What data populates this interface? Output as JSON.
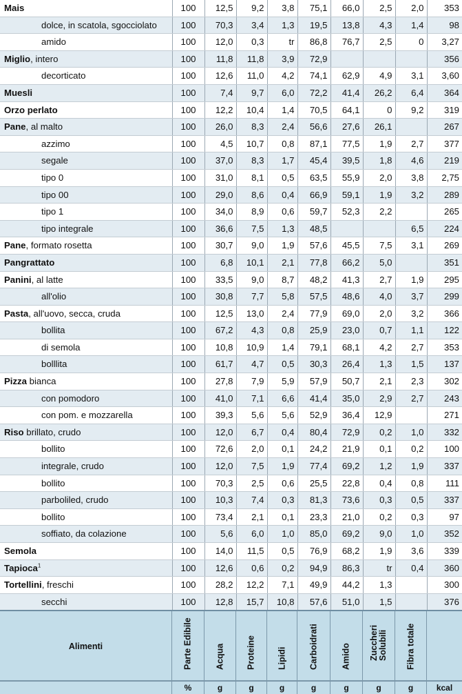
{
  "table": {
    "rows": [
      {
        "name": "Mais",
        "qual": "",
        "indent": false,
        "vals": [
          "100",
          "12,5",
          "9,2",
          "3,8",
          "75,1",
          "66,0",
          "2,5",
          "2,0",
          "353"
        ]
      },
      {
        "name": "",
        "qual": "dolce, in scatola, sgocciolato",
        "indent": true,
        "vals": [
          "100",
          "70,3",
          "3,4",
          "1,3",
          "19,5",
          "13,8",
          "4,3",
          "1,4",
          "98"
        ]
      },
      {
        "name": "",
        "qual": "amido",
        "indent": true,
        "vals": [
          "100",
          "12,0",
          "0,3",
          "tr",
          "86,8",
          "76,7",
          "2,5",
          "0",
          "3,27"
        ]
      },
      {
        "name": "Miglio",
        "qual": ", intero",
        "indent": false,
        "vals": [
          "100",
          "11,8",
          "11,8",
          "3,9",
          "72,9",
          "",
          "",
          "",
          "356"
        ]
      },
      {
        "name": "",
        "qual": "decorticato",
        "indent": true,
        "vals": [
          "100",
          "12,6",
          "11,0",
          "4,2",
          "74,1",
          "62,9",
          "4,9",
          "3,1",
          "3,60"
        ]
      },
      {
        "name": "Muesli",
        "qual": "",
        "indent": false,
        "vals": [
          "100",
          "7,4",
          "9,7",
          "6,0",
          "72,2",
          "41,4",
          "26,2",
          "6,4",
          "364"
        ]
      },
      {
        "name": "Orzo perlato",
        "qual": "",
        "indent": false,
        "vals": [
          "100",
          "12,2",
          "10,4",
          "1,4",
          "70,5",
          "64,1",
          "0",
          "9,2",
          "319"
        ]
      },
      {
        "name": "Pane",
        "qual": ", al malto",
        "indent": false,
        "vals": [
          "100",
          "26,0",
          "8,3",
          "2,4",
          "56,6",
          "27,6",
          "26,1",
          "",
          "267"
        ]
      },
      {
        "name": "",
        "qual": "azzimo",
        "indent": true,
        "vals": [
          "100",
          "4,5",
          "10,7",
          "0,8",
          "87,1",
          "77,5",
          "1,9",
          "2,7",
          "377"
        ]
      },
      {
        "name": "",
        "qual": "segale",
        "indent": true,
        "vals": [
          "100",
          "37,0",
          "8,3",
          "1,7",
          "45,4",
          "39,5",
          "1,8",
          "4,6",
          "219"
        ]
      },
      {
        "name": "",
        "qual": "tipo 0",
        "indent": true,
        "vals": [
          "100",
          "31,0",
          "8,1",
          "0,5",
          "63,5",
          "55,9",
          "2,0",
          "3,8",
          "2,75"
        ]
      },
      {
        "name": "",
        "qual": "tipo 00",
        "indent": true,
        "vals": [
          "100",
          "29,0",
          "8,6",
          "0,4",
          "66,9",
          "59,1",
          "1,9",
          "3,2",
          "289"
        ]
      },
      {
        "name": "",
        "qual": "tipo 1",
        "indent": true,
        "vals": [
          "100",
          "34,0",
          "8,9",
          "0,6",
          "59,7",
          "52,3",
          "2,2",
          "",
          "265"
        ]
      },
      {
        "name": "",
        "qual": "tipo integrale",
        "indent": true,
        "vals": [
          "100",
          "36,6",
          "7,5",
          "1,3",
          "48,5",
          "",
          "",
          "6,5",
          "224"
        ]
      },
      {
        "name": "Pane",
        "qual": ", formato rosetta",
        "indent": false,
        "vals": [
          "100",
          "30,7",
          "9,0",
          "1,9",
          "57,6",
          "45,5",
          "7,5",
          "3,1",
          "269"
        ]
      },
      {
        "name": "Pangrattato",
        "qual": "",
        "indent": false,
        "vals": [
          "100",
          "6,8",
          "10,1",
          "2,1",
          "77,8",
          "66,2",
          "5,0",
          "",
          "351"
        ]
      },
      {
        "name": "Panini",
        "qual": ", al latte",
        "indent": false,
        "vals": [
          "100",
          "33,5",
          "9,0",
          "8,7",
          "48,2",
          "41,3",
          "2,7",
          "1,9",
          "295"
        ]
      },
      {
        "name": "",
        "qual": "all'olio",
        "indent": true,
        "vals": [
          "100",
          "30,8",
          "7,7",
          "5,8",
          "57,5",
          "48,6",
          "4,0",
          "3,7",
          "299"
        ]
      },
      {
        "name": "Pasta",
        "qual": ", all'uovo, secca, cruda",
        "indent": false,
        "vals": [
          "100",
          "12,5",
          "13,0",
          "2,4",
          "77,9",
          "69,0",
          "2,0",
          "3,2",
          "366"
        ]
      },
      {
        "name": "",
        "qual": "bollita",
        "indent": true,
        "vals": [
          "100",
          "67,2",
          "4,3",
          "0,8",
          "25,9",
          "23,0",
          "0,7",
          "1,1",
          "122"
        ]
      },
      {
        "name": "",
        "qual": "di semola",
        "indent": true,
        "vals": [
          "100",
          "10,8",
          "10,9",
          "1,4",
          "79,1",
          "68,1",
          "4,2",
          "2,7",
          "353"
        ]
      },
      {
        "name": "",
        "qual": "bolllita",
        "indent": true,
        "vals": [
          "100",
          "61,7",
          "4,7",
          "0,5",
          "30,3",
          "26,4",
          "1,3",
          "1,5",
          "137"
        ]
      },
      {
        "name": "Pizza",
        "qual": " bianca",
        "indent": false,
        "vals": [
          "100",
          "27,8",
          "7,9",
          "5,9",
          "57,9",
          "50,7",
          "2,1",
          "2,3",
          "302"
        ]
      },
      {
        "name": "",
        "qual": "con pomodoro",
        "indent": true,
        "vals": [
          "100",
          "41,0",
          "7,1",
          "6,6",
          "41,4",
          "35,0",
          "2,9",
          "2,7",
          "243"
        ]
      },
      {
        "name": "",
        "qual": "con pom. e mozzarella",
        "indent": true,
        "vals": [
          "100",
          "39,3",
          "5,6",
          "5,6",
          "52,9",
          "36,4",
          "12,9",
          "",
          "271"
        ]
      },
      {
        "name": "Riso",
        "qual": " brillato, crudo",
        "indent": false,
        "vals": [
          "100",
          "12,0",
          "6,7",
          "0,4",
          "80,4",
          "72,9",
          "0,2",
          "1,0",
          "332"
        ]
      },
      {
        "name": "",
        "qual": "bollito",
        "indent": true,
        "vals": [
          "100",
          "72,6",
          "2,0",
          "0,1",
          "24,2",
          "21,9",
          "0,1",
          "0,2",
          "100"
        ]
      },
      {
        "name": "",
        "qual": "integrale, crudo",
        "indent": true,
        "vals": [
          "100",
          "12,0",
          "7,5",
          "1,9",
          "77,4",
          "69,2",
          "1,2",
          "1,9",
          "337"
        ]
      },
      {
        "name": "",
        "qual": "bollito",
        "indent": true,
        "vals": [
          "100",
          "70,3",
          "2,5",
          "0,6",
          "25,5",
          "22,8",
          "0,4",
          "0,8",
          "111"
        ]
      },
      {
        "name": "",
        "qual": "parboliled, crudo",
        "indent": true,
        "vals": [
          "100",
          "10,3",
          "7,4",
          "0,3",
          "81,3",
          "73,6",
          "0,3",
          "0,5",
          "337"
        ]
      },
      {
        "name": "",
        "qual": "bollito",
        "indent": true,
        "vals": [
          "100",
          "73,4",
          "2,1",
          "0,1",
          "23,3",
          "21,0",
          "0,2",
          "0,3",
          "97"
        ]
      },
      {
        "name": "",
        "qual": "soffiato, da colazione",
        "indent": true,
        "vals": [
          "100",
          "5,6",
          "6,0",
          "1,0",
          "85,0",
          "69,2",
          "9,0",
          "1,0",
          "352"
        ]
      },
      {
        "name": "Semola",
        "qual": "",
        "indent": false,
        "vals": [
          "100",
          "14,0",
          "11,5",
          "0,5",
          "76,9",
          "68,2",
          "1,9",
          "3,6",
          "339"
        ]
      },
      {
        "name": "Tapioca",
        "qual": "",
        "sup": "1",
        "indent": false,
        "vals": [
          "100",
          "12,6",
          "0,6",
          "0,2",
          "94,9",
          "86,3",
          "tr",
          "0,4",
          "360"
        ]
      },
      {
        "name": "Tortellini",
        "qual": ", freschi",
        "indent": false,
        "vals": [
          "100",
          "28,2",
          "12,2",
          "7,1",
          "49,9",
          "44,2",
          "1,3",
          "",
          "300"
        ]
      },
      {
        "name": "",
        "qual": "secchi",
        "indent": true,
        "vals": [
          "100",
          "12,8",
          "15,7",
          "10,8",
          "57,6",
          "51,0",
          "1,5",
          "",
          "376"
        ]
      }
    ]
  },
  "header": {
    "first": "Alimenti",
    "cols": [
      "Parte Edibile",
      "Acqua",
      "Proteine",
      "Lipidi",
      "Carboidrati",
      "Amido",
      "Zuccheri Solubili",
      "Fibra totale",
      ""
    ],
    "units": [
      "",
      "%",
      "g",
      "g",
      "g",
      "g",
      "g",
      "g",
      "g",
      "kcal"
    ]
  },
  "colors": {
    "shade": "#e3ecf2",
    "header": "#c3dde9",
    "rule": "#9aa7b2"
  }
}
